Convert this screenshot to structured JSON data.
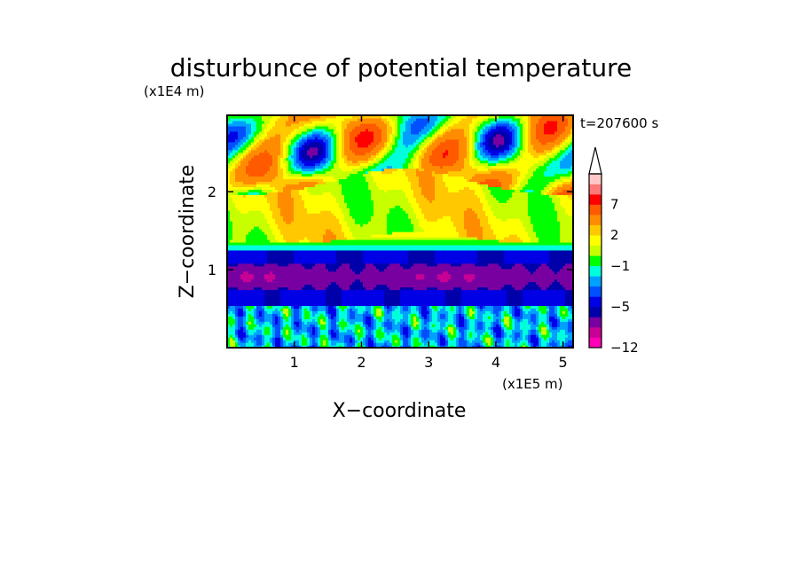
{
  "chart_data": {
    "type": "heatmap",
    "title": "disturbunce of potential temperature",
    "time_label": "t=207600 s",
    "xlabel": "X−coordinate",
    "ylabel": "Z−coordinate",
    "x_unit": "(x1E5 m)",
    "y_unit": "(x1E4 m)",
    "xlim": [
      0,
      5.15
    ],
    "ylim": [
      0,
      2.98
    ],
    "x_ticks": [
      {
        "value": 1,
        "label": "1"
      },
      {
        "value": 2,
        "label": "2"
      },
      {
        "value": 3,
        "label": "3"
      },
      {
        "value": 4,
        "label": "4"
      },
      {
        "value": 5,
        "label": "5"
      }
    ],
    "y_ticks": [
      {
        "value": 1,
        "label": "1"
      },
      {
        "value": 2,
        "label": "2"
      }
    ],
    "colorbar": {
      "levels": [
        -12,
        -10,
        -8,
        -6,
        -5,
        -4,
        -3,
        -2,
        -1,
        0,
        1,
        2,
        3,
        5,
        7,
        9,
        11
      ],
      "colors": [
        "#ff00b4",
        "#c80096",
        "#7800a0",
        "#0000aa",
        "#0000e6",
        "#0050ff",
        "#00a0ff",
        "#00ffdc",
        "#00ff00",
        "#c8ff00",
        "#ffff00",
        "#ffc800",
        "#ff8c00",
        "#ff5a00",
        "#ff0000",
        "#ff7878",
        "#ffc8c8"
      ],
      "labels": [
        {
          "value": -12,
          "label": "−12"
        },
        {
          "value": -5,
          "label": "−5"
        },
        {
          "value": -1,
          "label": "−1"
        },
        {
          "value": 2,
          "label": "2"
        },
        {
          "value": 7,
          "label": "7"
        }
      ],
      "extend": "max"
    },
    "field_features": [
      {
        "description": "surface layer",
        "z_range": [
          0,
          0.5
        ],
        "value_range": [
          -3,
          1
        ]
      },
      {
        "description": "cold band",
        "z_range": [
          0.5,
          1.25
        ],
        "value_range": [
          -8,
          -5
        ]
      },
      {
        "description": "warm band",
        "z_range": [
          1.3,
          2.0
        ],
        "value_range": [
          0,
          3
        ]
      },
      {
        "description": "upper waves",
        "z_range": [
          2.0,
          2.98
        ],
        "value_range": [
          -10,
          9
        ]
      }
    ]
  }
}
